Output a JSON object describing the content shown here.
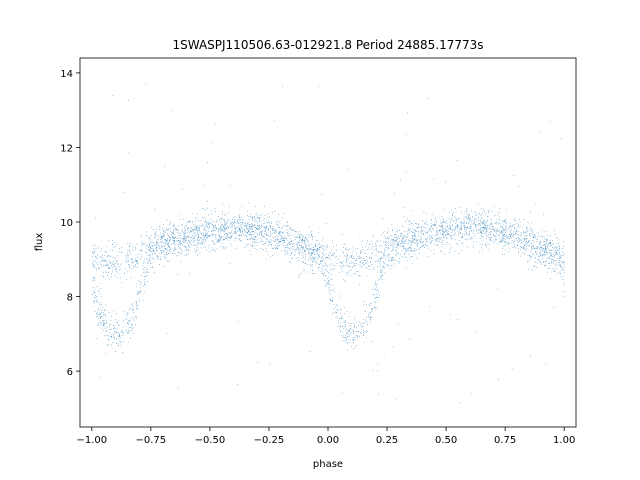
{
  "chart_data": {
    "type": "scatter",
    "title": "1SWASPJ110506.63-012921.8 Period 24885.17773s",
    "xlabel": "phase",
    "ylabel": "flux",
    "xlim": [
      -1.05,
      1.05
    ],
    "ylim": [
      4.5,
      14.4
    ],
    "x_ticks": [
      -1.0,
      -0.75,
      -0.5,
      -0.25,
      0.0,
      0.25,
      0.5,
      0.75,
      1.0
    ],
    "x_tick_labels": [
      "−1.00",
      "−0.75",
      "−0.50",
      "−0.25",
      "0.00",
      "0.25",
      "0.50",
      "0.75",
      "1.00"
    ],
    "y_ticks": [
      6,
      8,
      10,
      12,
      14
    ],
    "y_tick_labels": [
      "6",
      "8",
      "10",
      "12",
      "14"
    ],
    "grid": false,
    "marker_color": "#1f77b4",
    "series": [
      {
        "description": "phase-folded light curve, periodic over 1.0 phase",
        "upper_branch_curve": {
          "phase": [
            0.0,
            0.05,
            0.1,
            0.15,
            0.2,
            0.25,
            0.3,
            0.35,
            0.4,
            0.45,
            0.5,
            0.55,
            0.6,
            0.65,
            0.7,
            0.75,
            0.8,
            0.85,
            0.9,
            0.95,
            1.0
          ],
          "flux": [
            9.0,
            8.95,
            8.9,
            9.0,
            9.15,
            9.3,
            9.45,
            9.55,
            9.65,
            9.7,
            9.75,
            9.8,
            9.85,
            9.85,
            9.8,
            9.7,
            9.6,
            9.45,
            9.3,
            9.15,
            9.0
          ]
        },
        "dip_branch_curve": {
          "phase": [
            -0.02,
            0.0,
            0.03,
            0.06,
            0.09,
            0.12,
            0.15,
            0.18,
            0.21,
            0.24
          ],
          "flux": [
            8.9,
            8.3,
            7.6,
            7.2,
            7.0,
            7.0,
            7.2,
            7.6,
            8.3,
            9.0
          ]
        },
        "scatter_sigma": 0.25,
        "outlier_range": [
          5.0,
          13.9
        ]
      }
    ]
  }
}
